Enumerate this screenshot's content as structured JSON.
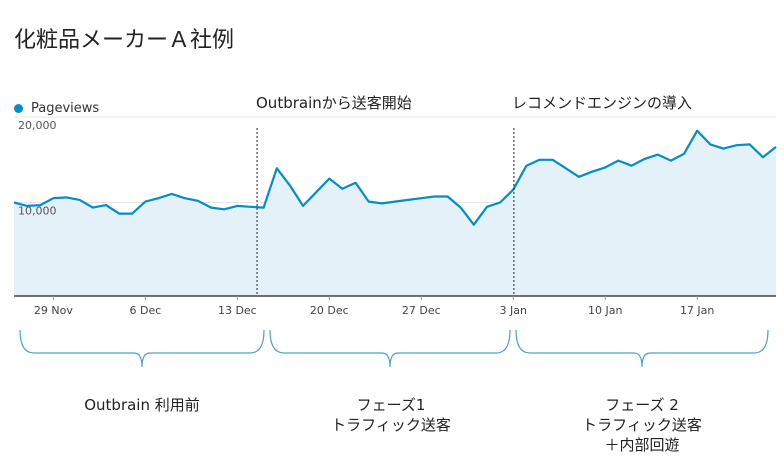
{
  "page": {
    "title": "化粧品メーカーＡ社例"
  },
  "annotations": [
    {
      "label": "Outbrainから送客開始"
    },
    {
      "label": "レコメンドエンジンの導入"
    }
  ],
  "phases": [
    {
      "lines": [
        "Outbrain 利用前"
      ]
    },
    {
      "lines": [
        "フェーズ1",
        "トラフィック送客"
      ]
    },
    {
      "lines": [
        "フェーズ 2",
        "トラフィック送客",
        "＋内部回遊"
      ]
    }
  ],
  "chart_data": {
    "type": "area",
    "series": [
      {
        "name": "Pageviews",
        "color": "#058dc7",
        "x": [
          "26 Nov",
          "27 Nov",
          "28 Nov",
          "29 Nov",
          "30 Nov",
          "1 Dec",
          "2 Dec",
          "3 Dec",
          "4 Dec",
          "5 Dec",
          "6 Dec",
          "7 Dec",
          "8 Dec",
          "9 Dec",
          "10 Dec",
          "11 Dec",
          "12 Dec",
          "13 Dec",
          "14 Dec",
          "15 Dec",
          "16 Dec",
          "17 Dec",
          "18 Dec",
          "19 Dec",
          "20 Dec",
          "21 Dec",
          "22 Dec",
          "23 Dec",
          "24 Dec",
          "25 Dec",
          "26 Dec",
          "27 Dec",
          "28 Dec",
          "29 Dec",
          "30 Dec",
          "31 Dec",
          "1 Jan",
          "2 Jan",
          "3 Jan",
          "4 Jan",
          "5 Jan",
          "6 Jan",
          "7 Jan",
          "8 Jan",
          "9 Jan",
          "10 Jan",
          "11 Jan",
          "12 Jan",
          "13 Jan",
          "14 Jan",
          "15 Jan",
          "16 Jan",
          "17 Jan",
          "18 Jan",
          "19 Jan",
          "20 Jan",
          "21 Jan",
          "22 Jan",
          "23 Jan"
        ],
        "values": [
          10000,
          9600,
          9700,
          10500,
          10600,
          10300,
          9400,
          9700,
          8700,
          8700,
          10100,
          10500,
          11000,
          10500,
          10200,
          9400,
          9200,
          9600,
          9500,
          9400,
          14000,
          12000,
          9600,
          11200,
          12800,
          11600,
          12300,
          10100,
          9900,
          10100,
          10300,
          10500,
          10700,
          10700,
          9400,
          7400,
          9500,
          10000,
          11500,
          14300,
          15000,
          15000,
          14000,
          13000,
          13600,
          14100,
          14900,
          14300,
          15100,
          15600,
          14900,
          15700,
          18400,
          16800,
          16300,
          16700,
          16800,
          15300,
          16500
        ]
      }
    ],
    "x_ticks": [
      "29 Nov",
      "6 Dec",
      "13 Dec",
      "20 Dec",
      "27 Dec",
      "3 Jan",
      "10 Jan",
      "17 Jan"
    ],
    "y_ticks": [
      "10,000",
      "20,000"
    ],
    "ylim": [
      0,
      20000
    ],
    "xlabel": "",
    "ylabel": "",
    "legend": "top-left",
    "grid": true
  }
}
